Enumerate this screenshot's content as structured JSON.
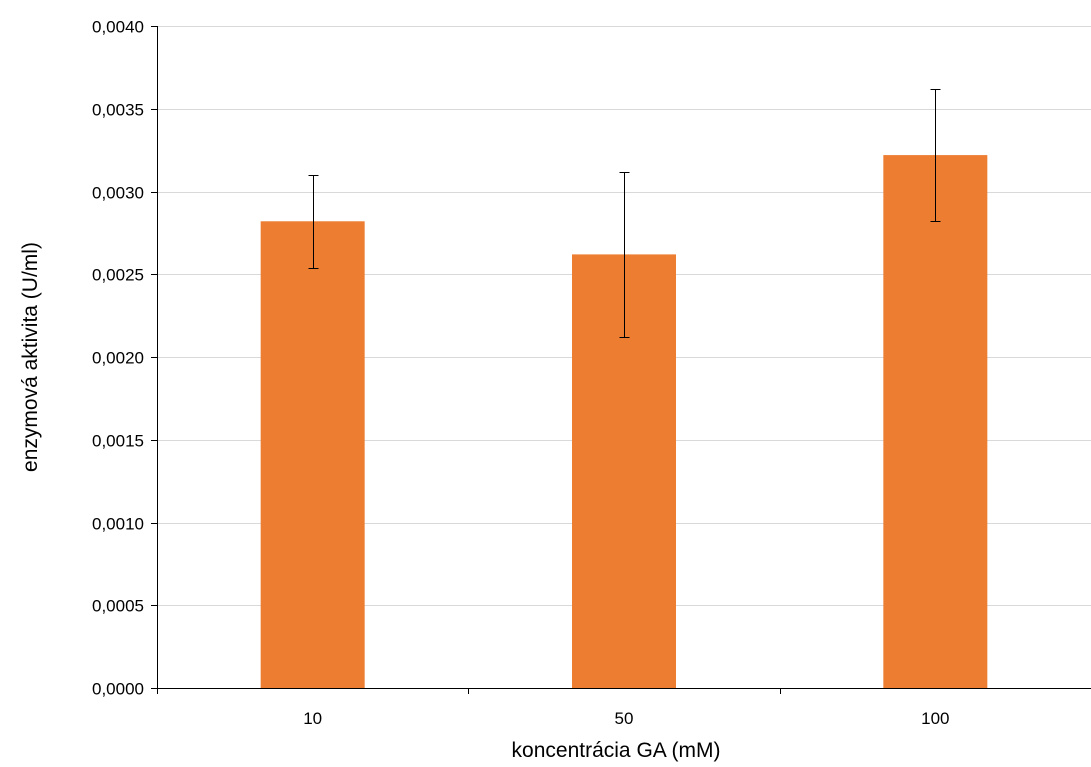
{
  "chart_data": {
    "type": "bar",
    "title": "",
    "xlabel": "koncentrácia GA (mM)",
    "ylabel": "enzymová aktivita (U/ml)",
    "categories": [
      "10",
      "50",
      "100"
    ],
    "values": [
      0.00282,
      0.00262,
      0.00322
    ],
    "error": [
      0.00028,
      0.0005,
      0.0004
    ],
    "ylim": [
      0,
      0.004
    ],
    "yticks": [
      0,
      0.0005,
      0.001,
      0.0015,
      0.002,
      0.0025,
      0.003,
      0.0035,
      0.004
    ],
    "ytick_labels": [
      "0,0000",
      "0,0005",
      "0,0010",
      "0,0015",
      "0,0020",
      "0,0025",
      "0,0030",
      "0,0035",
      "0,0040"
    ],
    "grid": true,
    "legend": "none",
    "bar_color": "#ED7D31",
    "grid_color": "#D9D9D9",
    "axis_color": "#000000"
  }
}
